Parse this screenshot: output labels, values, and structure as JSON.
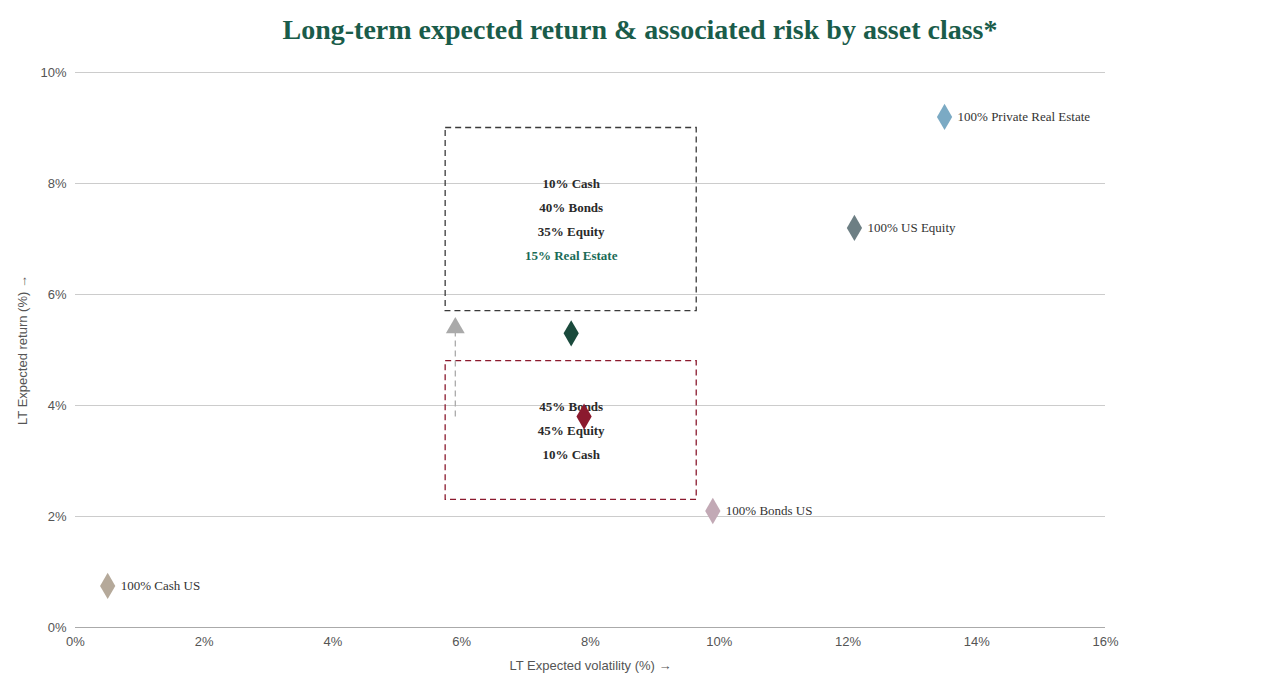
{
  "chart_data": {
    "type": "scatter",
    "title": "Long-term expected return & associated risk by asset class*",
    "title_color": "#1a5c4a",
    "x_label": "LT Expected volatility (%)",
    "y_label": "LT Expected return (%)",
    "xlim": [
      0,
      0.16
    ],
    "ylim": [
      0,
      0.1
    ],
    "xticks": [
      {
        "value": 0,
        "label": "0%"
      },
      {
        "value": 0.02,
        "label": "2%"
      },
      {
        "value": 0.04,
        "label": "4%"
      },
      {
        "value": 0.06,
        "label": "6%"
      },
      {
        "value": 0.08,
        "label": "8%"
      },
      {
        "value": 0.1,
        "label": "10%"
      },
      {
        "value": 0.12,
        "label": "12%"
      },
      {
        "value": 0.14,
        "label": "14%"
      },
      {
        "value": 0.16,
        "label": "16%"
      }
    ],
    "yticks": [
      {
        "value": 0,
        "label": "0%"
      },
      {
        "value": 0.02,
        "label": "2%"
      },
      {
        "value": 0.04,
        "label": "4%"
      },
      {
        "value": 0.06,
        "label": "6%"
      },
      {
        "value": 0.08,
        "label": "8%"
      },
      {
        "value": 0.1,
        "label": "10%"
      }
    ],
    "grid": "y",
    "marker": "diamond",
    "x": [
      0.005,
      0.099,
      0.121,
      0.135,
      0.077,
      0.079
    ],
    "values": [
      0.0075,
      0.021,
      0.072,
      0.092,
      0.053,
      0.038
    ],
    "colors": [
      "#b5a99a",
      "#c2a9b5",
      "#6d7f84",
      "#7baac4",
      "#1a4a3c",
      "#8b1a2e"
    ],
    "labels": [
      "100% Cash US",
      "100% Bonds US",
      "100% US Equity",
      "100% Private Real Estate",
      null,
      null
    ],
    "annotations": [
      {
        "type": "box",
        "x0": 0.0575,
        "y0": 0.057,
        "x1": 0.0965,
        "y1": 0.09,
        "color": "#3a3a3a",
        "line_style": "dashed",
        "text": [
          "10% Cash",
          "40% Bonds",
          "35% Equity",
          "15% Real Estate"
        ],
        "text_colors": [
          "#2a2a2a",
          "#2a2a2a",
          "#2a2a2a",
          "#1a6b57"
        ]
      },
      {
        "type": "box",
        "x0": 0.0575,
        "y0": 0.023,
        "x1": 0.0965,
        "y1": 0.048,
        "color": "#8b1a2e",
        "line_style": "dashed",
        "text": [
          "45% Bonds",
          "45% Equity",
          "10% Cash"
        ],
        "text_colors": [
          "#2a2a2a",
          "#2a2a2a",
          "#2a2a2a"
        ]
      },
      {
        "type": "arrow",
        "x0": 0.059,
        "y0": 0.038,
        "x1": 0.059,
        "y1": 0.054,
        "color": "#aaaaaa",
        "line_style": "dashed",
        "marker": "triangle"
      }
    ]
  }
}
